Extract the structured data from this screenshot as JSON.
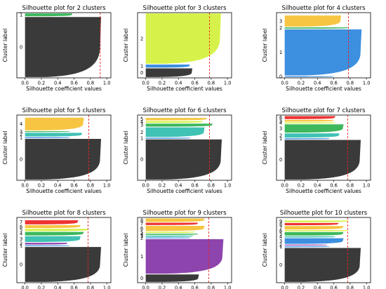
{
  "figure": {
    "xlabel": "Silhouette coefficient values",
    "ylabel": "Cluster label",
    "xticks": [
      "0.0",
      "0.2",
      "0.4",
      "0.6",
      "0.8",
      "1.0"
    ],
    "colors": {
      "black": "#3a3a3a",
      "green": "#3db85c",
      "yellowgreen": "#d6f24a",
      "orange": "#f7c542",
      "blue": "#3d8fe0",
      "teal": "#40c2b4",
      "red": "#ee3333",
      "purple": "#8e44ad",
      "avg_line": "#ee2222"
    }
  },
  "chart_data": [
    {
      "type": "area",
      "title": "Silhouette plot for 2 clusters",
      "xlim": [
        -0.1,
        1.05
      ],
      "avg_silhouette": 0.92,
      "clusters": [
        {
          "label": "0",
          "color": "black",
          "size": 0.955,
          "max": 0.93,
          "min": 0.0,
          "tail": 0.05
        },
        {
          "label": "1",
          "color": "green",
          "size": 0.045,
          "max": 0.58,
          "min": 0.0,
          "tail": 0.02
        }
      ]
    },
    {
      "type": "area",
      "title": "Silhouette plot for 3 clusters",
      "xlim": [
        -0.1,
        1.05
      ],
      "avg_silhouette": 0.78,
      "clusters": [
        {
          "label": "0",
          "color": "black",
          "size": 0.14,
          "max": 0.57,
          "min": 0.0,
          "tail": 0.02
        },
        {
          "label": "1",
          "color": "blue",
          "size": 0.05,
          "max": 0.54,
          "min": 0.0,
          "tail": 0.02
        },
        {
          "label": "2",
          "color": "yellowgreen",
          "size": 0.81,
          "max": 0.92,
          "min": 0.0,
          "tail": 0.02
        }
      ]
    },
    {
      "type": "area",
      "title": "Silhouette plot for 4 clusters",
      "xlim": [
        -0.1,
        1.05
      ],
      "avg_silhouette": 0.78,
      "clusters": [
        {
          "label": "0",
          "color": "blue",
          "size": 0.015,
          "max": 0.6,
          "min": 0.0,
          "tail": 0.01
        },
        {
          "label": "1",
          "color": "blue",
          "size": 0.75,
          "max": 0.94,
          "min": 0.0,
          "tail": 0.04
        },
        {
          "label": "2",
          "color": "green",
          "size": 0.02,
          "max": 0.78,
          "min": 0.0,
          "tail": 0.01
        },
        {
          "label": "3",
          "color": "orange",
          "size": 0.18,
          "max": 0.69,
          "min": 0.0,
          "tail": 0.02
        }
      ]
    },
    {
      "type": "area",
      "title": "Silhouette plot for 5 clusters",
      "xlim": [
        -0.1,
        1.05
      ],
      "avg_silhouette": 0.78,
      "clusters": [
        {
          "label": "0",
          "color": "black",
          "size": 0.67,
          "max": 0.93,
          "min": 0.0,
          "tail": 0.05
        },
        {
          "label": "1",
          "color": "blue",
          "size": 0.015,
          "max": 0.55,
          "min": 0.0,
          "tail": 0.01
        },
        {
          "label": "2",
          "color": "teal",
          "size": 0.06,
          "max": 0.7,
          "min": 0.0,
          "tail": 0.02
        },
        {
          "label": "3",
          "color": "green",
          "size": 0.015,
          "max": 0.55,
          "min": 0.0,
          "tail": 0.01
        },
        {
          "label": "4",
          "color": "orange",
          "size": 0.21,
          "max": 0.72,
          "min": 0.0,
          "tail": 0.02
        }
      ]
    },
    {
      "type": "area",
      "title": "Silhouette plot for 6 clusters",
      "xlim": [
        -0.1,
        1.05
      ],
      "avg_silhouette": 0.78,
      "clusters": [
        {
          "label": "0",
          "color": "black",
          "size": 0.67,
          "max": 0.93,
          "min": 0.0,
          "tail": 0.05
        },
        {
          "label": "1",
          "color": "blue",
          "size": 0.015,
          "max": 0.55,
          "min": 0.0,
          "tail": 0.01
        },
        {
          "label": "2",
          "color": "teal",
          "size": 0.16,
          "max": 0.72,
          "min": 0.0,
          "tail": 0.02
        },
        {
          "label": "3",
          "color": "green",
          "size": 0.05,
          "max": 0.82,
          "min": 0.0,
          "tail": 0.01
        },
        {
          "label": "4",
          "color": "yellowgreen",
          "size": 0.03,
          "max": 0.7,
          "min": 0.0,
          "tail": 0.01
        },
        {
          "label": "5",
          "color": "orange",
          "size": 0.04,
          "max": 0.75,
          "min": 0.0,
          "tail": 0.01
        }
      ]
    },
    {
      "type": "area",
      "title": "Silhouette plot for 7 clusters",
      "xlim": [
        -0.1,
        1.05
      ],
      "avg_silhouette": 0.77,
      "clusters": [
        {
          "label": "0",
          "color": "black",
          "size": 0.67,
          "max": 0.93,
          "min": 0.0,
          "tail": 0.05
        },
        {
          "label": "1",
          "color": "blue",
          "size": 0.015,
          "max": 0.55,
          "min": 0.0,
          "tail": 0.01
        },
        {
          "label": "2",
          "color": "teal",
          "size": 0.07,
          "max": 0.67,
          "min": 0.0,
          "tail": 0.01
        },
        {
          "label": "3",
          "color": "green",
          "size": 0.14,
          "max": 0.72,
          "min": 0.0,
          "tail": 0.02
        },
        {
          "label": "4",
          "color": "yellowgreen",
          "size": 0.02,
          "max": 0.62,
          "min": 0.0,
          "tail": 0.01
        },
        {
          "label": "5",
          "color": "orange",
          "size": 0.03,
          "max": 0.6,
          "min": 0.0,
          "tail": 0.01
        },
        {
          "label": "6",
          "color": "red",
          "size": 0.05,
          "max": 0.62,
          "min": 0.0,
          "tail": 0.01
        }
      ]
    },
    {
      "type": "area",
      "title": "Silhouette plot for 8 clusters",
      "xlim": [
        -0.1,
        1.05
      ],
      "avg_silhouette": 0.77,
      "clusters": [
        {
          "label": "0",
          "color": "black",
          "size": 0.6,
          "max": 0.93,
          "min": 0.0,
          "tail": 0.05
        },
        {
          "label": "1",
          "color": "blue",
          "size": 0.015,
          "max": 0.55,
          "min": 0.0,
          "tail": 0.01
        },
        {
          "label": "2",
          "color": "purple",
          "size": 0.03,
          "max": 0.52,
          "min": 0.0,
          "tail": 0.01
        },
        {
          "label": "3",
          "color": "teal",
          "size": 0.1,
          "max": 0.68,
          "min": 0.0,
          "tail": 0.01
        },
        {
          "label": "4",
          "color": "green",
          "size": 0.06,
          "max": 0.72,
          "min": 0.0,
          "tail": 0.01
        },
        {
          "label": "5",
          "color": "yellowgreen",
          "size": 0.04,
          "max": 0.78,
          "min": 0.0,
          "tail": 0.01
        },
        {
          "label": "6",
          "color": "orange",
          "size": 0.05,
          "max": 0.68,
          "min": 0.0,
          "tail": 0.01
        },
        {
          "label": "7",
          "color": "red",
          "size": 0.07,
          "max": 0.65,
          "min": 0.0,
          "tail": 0.01
        }
      ]
    },
    {
      "type": "area",
      "title": "Silhouette plot for 9 clusters",
      "xlim": [
        -0.1,
        1.05
      ],
      "avg_silhouette": 0.77,
      "clusters": [
        {
          "label": "0",
          "color": "black",
          "size": 0.13,
          "max": 0.65,
          "min": 0.0,
          "tail": 0.02
        },
        {
          "label": "1",
          "color": "purple",
          "size": 0.6,
          "max": 0.95,
          "min": 0.0,
          "tail": 0.02
        },
        {
          "label": "2",
          "color": "blue",
          "size": 0.015,
          "max": 0.55,
          "min": 0.0,
          "tail": 0.01
        },
        {
          "label": "3",
          "color": "teal",
          "size": 0.02,
          "max": 0.58,
          "min": 0.0,
          "tail": 0.01
        },
        {
          "label": "4",
          "color": "green",
          "size": 0.02,
          "max": 0.64,
          "min": 0.0,
          "tail": 0.01
        },
        {
          "label": "5",
          "color": "yellowgreen",
          "size": 0.02,
          "max": 0.6,
          "min": 0.0,
          "tail": 0.01
        },
        {
          "label": "6",
          "color": "orange",
          "size": 0.09,
          "max": 0.72,
          "min": 0.0,
          "tail": 0.02
        },
        {
          "label": "7",
          "color": "red",
          "size": 0.04,
          "max": 0.64,
          "min": 0.0,
          "tail": 0.01
        },
        {
          "label": "8",
          "color": "orange",
          "size": 0.06,
          "max": 0.72,
          "min": 0.0,
          "tail": 0.01
        }
      ]
    },
    {
      "type": "area",
      "title": "Silhouette plot for 10 clusters",
      "xlim": [
        -0.1,
        1.05
      ],
      "avg_silhouette": 0.77,
      "clusters": [
        {
          "label": "0",
          "color": "black",
          "size": 0.6,
          "max": 0.93,
          "min": 0.0,
          "tail": 0.05
        },
        {
          "label": "1",
          "color": "blue",
          "size": 0.015,
          "max": 0.55,
          "min": 0.0,
          "tail": 0.01
        },
        {
          "label": "2",
          "color": "purple",
          "size": 0.015,
          "max": 0.52,
          "min": 0.0,
          "tail": 0.01
        },
        {
          "label": "3",
          "color": "blue",
          "size": 0.1,
          "max": 0.72,
          "min": 0.0,
          "tail": 0.01
        },
        {
          "label": "4",
          "color": "teal",
          "size": 0.02,
          "max": 0.62,
          "min": 0.0,
          "tail": 0.01
        },
        {
          "label": "5",
          "color": "green",
          "size": 0.06,
          "max": 0.72,
          "min": 0.0,
          "tail": 0.01
        },
        {
          "label": "6",
          "color": "yellowgreen",
          "size": 0.02,
          "max": 0.78,
          "min": 0.0,
          "tail": 0.01
        },
        {
          "label": "7",
          "color": "orange",
          "size": 0.06,
          "max": 0.72,
          "min": 0.0,
          "tail": 0.01
        },
        {
          "label": "8",
          "color": "red",
          "size": 0.04,
          "max": 0.66,
          "min": 0.0,
          "tail": 0.01
        },
        {
          "label": "9",
          "color": "yellowgreen",
          "size": 0.03,
          "max": 0.78,
          "min": 0.0,
          "tail": 0.01
        }
      ]
    }
  ]
}
